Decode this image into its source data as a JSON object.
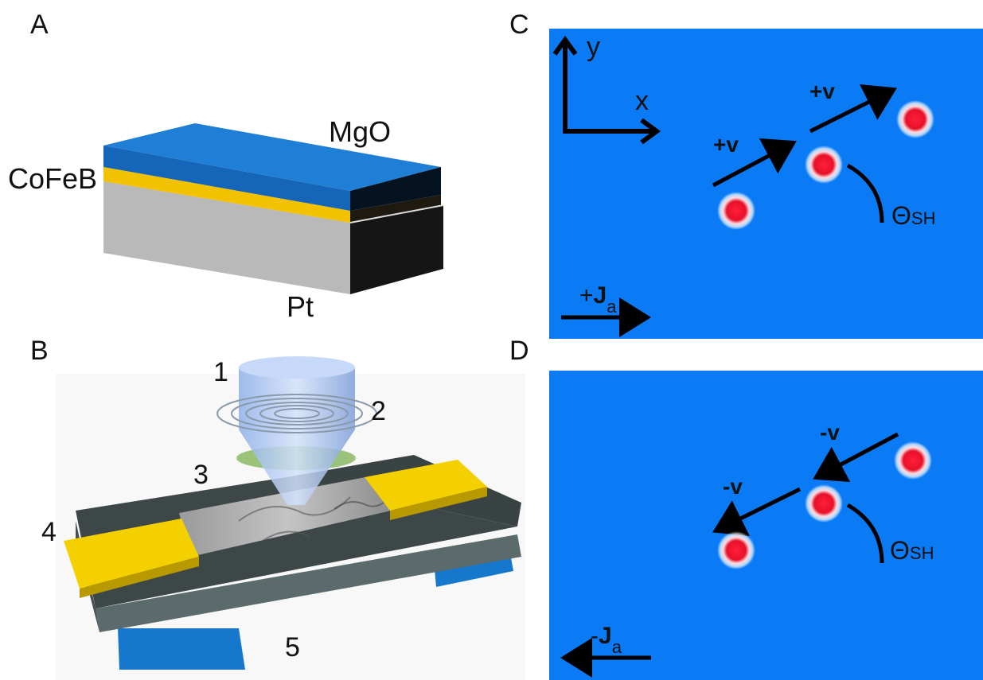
{
  "panels": {
    "a": "A",
    "b": "B",
    "c": "C",
    "d": "D"
  },
  "stack": {
    "top_layer": "MgO",
    "middle_layer": "CoFeB",
    "bottom_layer": "Pt"
  },
  "device_labels": [
    "1",
    "2",
    "3",
    "4",
    "5"
  ],
  "axes": {
    "x": "x",
    "y": "y"
  },
  "panel_c": {
    "velocity_1": "+v",
    "velocity_2": "+v",
    "angle_symbol": "Θ",
    "angle_subscript": "SH",
    "current_sign": "+",
    "current_symbol": "J",
    "current_subscript": "a"
  },
  "panel_d": {
    "velocity_1": "-v",
    "velocity_2": "-v",
    "angle_symbol": "Θ",
    "angle_subscript": "SH",
    "current_sign": "-",
    "current_symbol": "J",
    "current_subscript": "a"
  },
  "colors": {
    "mgo": "#1f7fd6",
    "cofeb": "#f2c200",
    "pt": "#b9b9b9",
    "panel_bg": "#0a7bf5",
    "skyrmion": "#e8102a",
    "gold_pad": "#f5d000"
  }
}
